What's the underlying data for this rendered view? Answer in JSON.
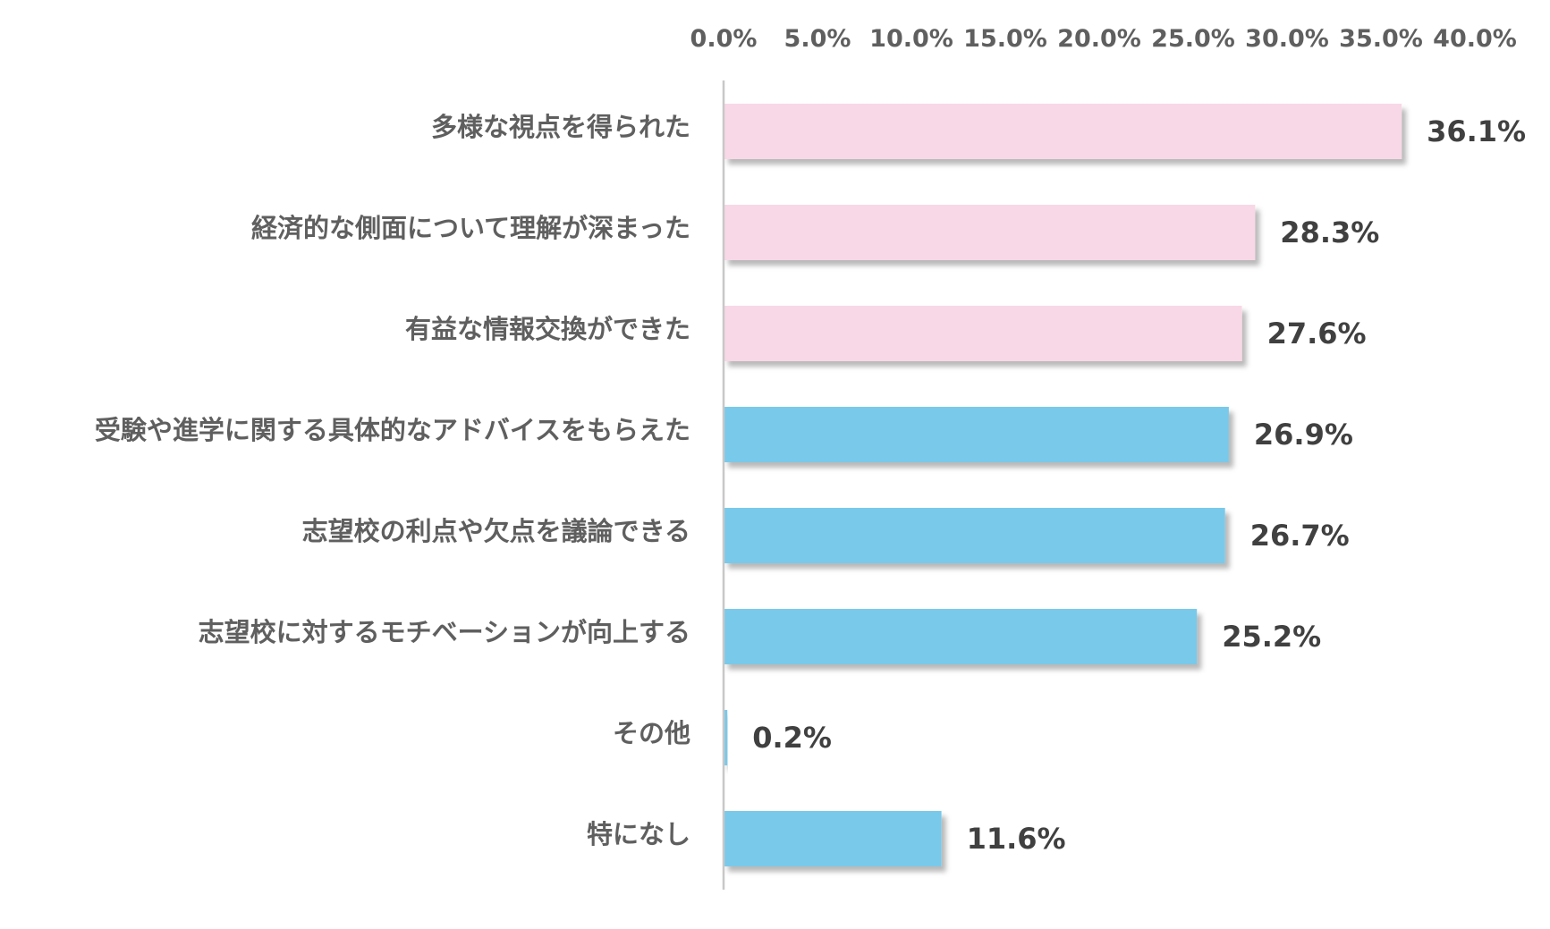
{
  "chart_data": {
    "type": "bar",
    "orientation": "horizontal",
    "title": "",
    "xlabel": "",
    "ylabel": "",
    "xlim": [
      0,
      40
    ],
    "x_ticks": [
      0,
      5,
      10,
      15,
      20,
      25,
      30,
      35,
      40
    ],
    "x_tick_labels": [
      "0.0%",
      "5.0%",
      "10.0%",
      "15.0%",
      "20.0%",
      "25.0%",
      "30.0%",
      "35.0%",
      "40.0%"
    ],
    "x_axis_position": "top",
    "grid": false,
    "legend": "none",
    "categories": [
      "多様な視点を得られた",
      "経済的な側面について理解が深まった",
      "有益な情報交換ができた",
      "受験や進学に関する具体的なアドバイスをもらえた",
      "志望校の利点や欠点を議論できる",
      "志望校に対するモチベーションが向上する",
      "その他",
      "特になし"
    ],
    "values": [
      36.1,
      28.3,
      27.6,
      26.9,
      26.7,
      25.2,
      0.2,
      11.6
    ],
    "value_labels": [
      "36.1%",
      "28.3%",
      "27.6%",
      "26.9%",
      "26.7%",
      "25.2%",
      "0.2%",
      "11.6%"
    ],
    "bar_colors": [
      "#f8d8e6",
      "#f8d8e6",
      "#f8d8e6",
      "#79c9ea",
      "#79c9ea",
      "#79c9ea",
      "#79c9ea",
      "#79c9ea"
    ]
  },
  "colors": {
    "pink_bar": "#f8d8e6",
    "blue_bar": "#79c9ea",
    "axis_line": "#c8c8c8",
    "category_text": "#5f5f5f",
    "value_text": "#404040"
  }
}
